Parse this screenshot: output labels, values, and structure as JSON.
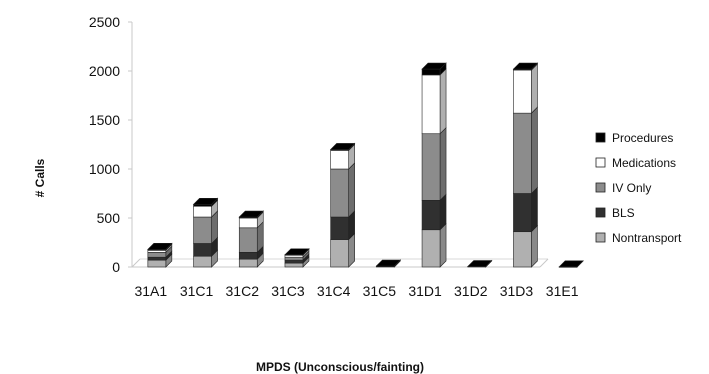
{
  "chart_data": {
    "type": "bar",
    "stacked": true,
    "style": "3d",
    "xlabel": "MPDS (Unconscious/fainting)",
    "ylabel": "# Calls",
    "ylim": [
      0,
      2500
    ],
    "yticks": [
      0,
      500,
      1000,
      1500,
      2000,
      2500
    ],
    "categories": [
      "31A1",
      "31C1",
      "31C2",
      "31C3",
      "31C4",
      "31C5",
      "31D1",
      "31D2",
      "31D3",
      "31E1"
    ],
    "series": [
      {
        "name": "Nontransport",
        "color": "#b0b0b0",
        "values": [
          70,
          110,
          80,
          40,
          280,
          0,
          380,
          0,
          360,
          0
        ]
      },
      {
        "name": "BLS",
        "color": "#303030",
        "values": [
          30,
          130,
          70,
          30,
          230,
          0,
          300,
          0,
          390,
          0
        ]
      },
      {
        "name": "IV Only",
        "color": "#8c8c8c",
        "values": [
          50,
          270,
          250,
          30,
          490,
          0,
          680,
          0,
          820,
          0
        ]
      },
      {
        "name": "Medications",
        "color": "#ffffff",
        "values": [
          20,
          110,
          100,
          20,
          190,
          0,
          600,
          0,
          440,
          0
        ]
      },
      {
        "name": "Procedures",
        "color": "#000000",
        "values": [
          10,
          20,
          10,
          5,
          10,
          10,
          60,
          5,
          10,
          2
        ]
      }
    ],
    "legend_position": "right",
    "grid": false
  }
}
